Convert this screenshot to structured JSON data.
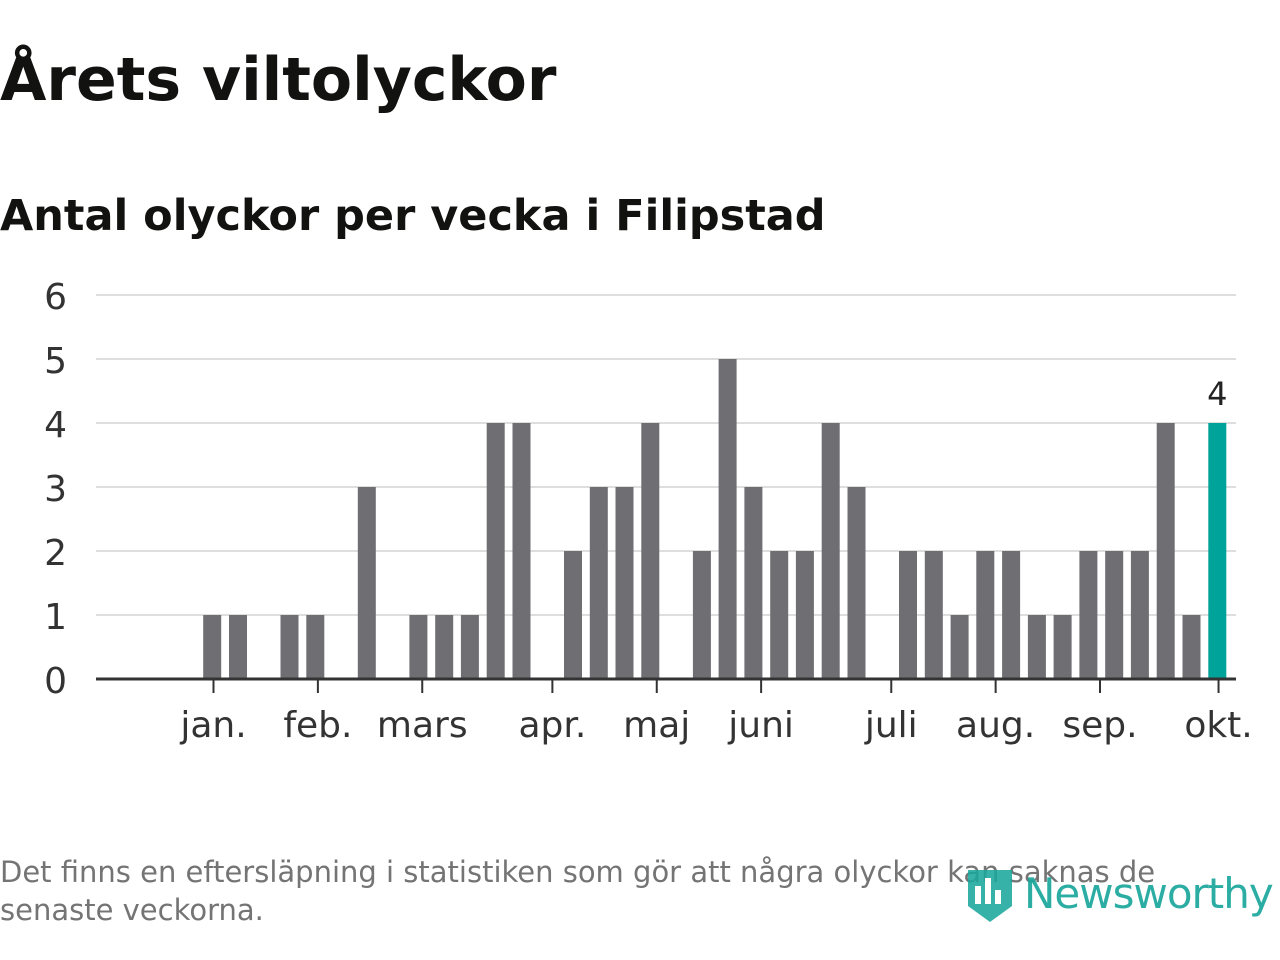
{
  "title": "Årets viltolyckor",
  "subtitle": "Antal olyckor per vecka i Filipstad",
  "footnote": "Det finns en eftersläpning i statistiken som gör att några olyckor kan saknas de senaste veckorna.",
  "brand": {
    "name": "Newsworthy",
    "icon": "newsworthy-logo-icon",
    "color": "#1aa79c"
  },
  "chart_data": {
    "type": "bar",
    "title": "Antal olyckor per vecka i Filipstad",
    "xlabel": "",
    "ylabel": "",
    "ylim": [
      0,
      6
    ],
    "yticks": [
      "0",
      "1",
      "2",
      "3",
      "4",
      "5",
      "6"
    ],
    "grid": true,
    "values": [
      0,
      0,
      1,
      1,
      0,
      1,
      1,
      0,
      3,
      0,
      1,
      1,
      1,
      4,
      4,
      0,
      2,
      3,
      3,
      4,
      0,
      2,
      5,
      3,
      2,
      2,
      4,
      3,
      0,
      2,
      2,
      1,
      2,
      2,
      1,
      1,
      2,
      2,
      2,
      4,
      1,
      4
    ],
    "highlight_index": 41,
    "highlight_label": "4",
    "bar_color": "#6f6e73",
    "highlight_color": "#00a39a",
    "month_labels": [
      "jan.",
      "feb.",
      "mars",
      "apr.",
      "maj",
      "juni",
      "juli",
      "aug.",
      "sep.",
      "okt."
    ],
    "month_tick_weeks": [
      2.55,
      6.6,
      10.65,
      15.7,
      19.75,
      23.8,
      28.85,
      32.9,
      36.95,
      41.55
    ]
  }
}
